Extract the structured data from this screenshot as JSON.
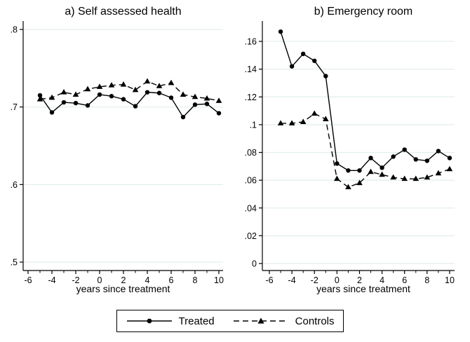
{
  "figure": {
    "colors": {
      "background": "#ffffff",
      "line": "#000000",
      "grid": "#e3edee",
      "axis": "#000000"
    },
    "legend": {
      "items": [
        {
          "label": "Treated",
          "marker": "circle-icon",
          "line_style": "solid"
        },
        {
          "label": "Controls",
          "marker": "triangle-icon",
          "line_style": "dashed"
        }
      ]
    }
  },
  "chart_data": [
    {
      "type": "line",
      "title": "a) Self assessed health",
      "xlabel": "years since treatment",
      "ylabel": "",
      "xlim": [
        -6.5,
        10.5
      ],
      "ylim": [
        0.5,
        0.8
      ],
      "grid": true,
      "x": [
        -5,
        -4,
        -3,
        -2,
        -1,
        0,
        1,
        2,
        3,
        4,
        5,
        6,
        7,
        8,
        9,
        10
      ],
      "series": [
        {
          "name": "Treated",
          "style": "solid",
          "marker": "circle",
          "values": [
            0.715,
            0.693,
            0.706,
            0.705,
            0.702,
            0.716,
            0.714,
            0.71,
            0.701,
            0.719,
            0.718,
            0.712,
            0.687,
            0.703,
            0.704,
            0.692
          ]
        },
        {
          "name": "Controls",
          "style": "dashed",
          "marker": "triangle",
          "values": [
            0.71,
            0.712,
            0.719,
            0.716,
            0.723,
            0.726,
            0.728,
            0.729,
            0.722,
            0.733,
            0.727,
            0.731,
            0.716,
            0.713,
            0.711,
            0.708
          ]
        }
      ],
      "yticks": [
        {
          "value": 0.5,
          "label": ".5"
        },
        {
          "value": 0.6,
          "label": ".6"
        },
        {
          "value": 0.7,
          "label": ".7"
        },
        {
          "value": 0.8,
          "label": ".8"
        }
      ],
      "xticks": [
        {
          "value": -6,
          "label": "-6"
        },
        {
          "value": -4,
          "label": "-4"
        },
        {
          "value": -2,
          "label": "-2"
        },
        {
          "value": 0,
          "label": "0"
        },
        {
          "value": 2,
          "label": "2"
        },
        {
          "value": 4,
          "label": "4"
        },
        {
          "value": 6,
          "label": "6"
        },
        {
          "value": 8,
          "label": "8"
        },
        {
          "value": 10,
          "label": "10"
        }
      ],
      "xticks_minor": [
        -5,
        -3,
        -1,
        1,
        3,
        5,
        7,
        9
      ]
    },
    {
      "type": "line",
      "title": "b) Emergency room",
      "xlabel": "years since treatment",
      "ylabel": "",
      "xlim": [
        -6.5,
        10.5
      ],
      "ylim": [
        0,
        0.16
      ],
      "grid": true,
      "x": [
        -5,
        -4,
        -3,
        -2,
        -1,
        0,
        1,
        2,
        3,
        4,
        5,
        6,
        7,
        8,
        9,
        10
      ],
      "series": [
        {
          "name": "Treated",
          "style": "solid",
          "marker": "circle",
          "values": [
            0.167,
            0.142,
            0.151,
            0.146,
            0.135,
            0.072,
            0.067,
            0.067,
            0.076,
            0.069,
            0.077,
            0.082,
            0.075,
            0.074,
            0.081,
            0.076
          ]
        },
        {
          "name": "Controls",
          "style": "dashed",
          "marker": "triangle",
          "values": [
            0.101,
            0.101,
            0.102,
            0.108,
            0.104,
            0.061,
            0.055,
            0.058,
            0.066,
            0.064,
            0.062,
            0.061,
            0.061,
            0.062,
            0.065,
            0.068
          ]
        }
      ],
      "yticks": [
        {
          "value": 0,
          "label": "0"
        },
        {
          "value": 0.02,
          "label": ".02"
        },
        {
          "value": 0.04,
          "label": ".04"
        },
        {
          "value": 0.06,
          "label": ".06"
        },
        {
          "value": 0.08,
          "label": ".08"
        },
        {
          "value": 0.1,
          "label": ".1"
        },
        {
          "value": 0.12,
          "label": ".12"
        },
        {
          "value": 0.14,
          "label": ".14"
        },
        {
          "value": 0.16,
          "label": ".16"
        }
      ],
      "xticks": [
        {
          "value": -6,
          "label": "-6"
        },
        {
          "value": -4,
          "label": "-4"
        },
        {
          "value": -2,
          "label": "-2"
        },
        {
          "value": 0,
          "label": "0"
        },
        {
          "value": 2,
          "label": "2"
        },
        {
          "value": 4,
          "label": "4"
        },
        {
          "value": 6,
          "label": "6"
        },
        {
          "value": 8,
          "label": "8"
        },
        {
          "value": 10,
          "label": "10"
        }
      ],
      "xticks_minor": [
        -5,
        -3,
        -1,
        1,
        3,
        5,
        7,
        9
      ]
    }
  ]
}
